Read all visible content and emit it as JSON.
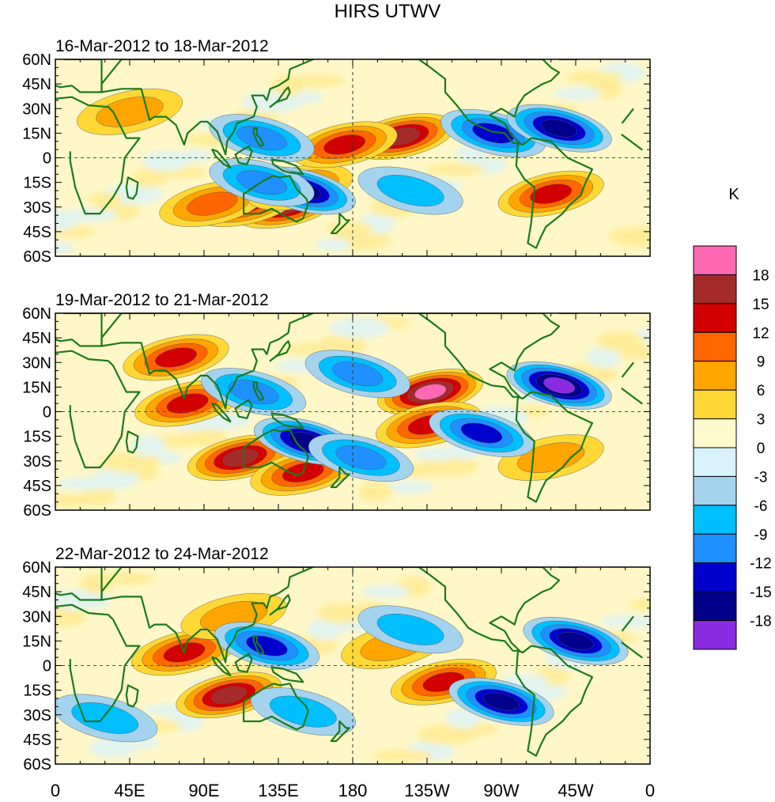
{
  "figure": {
    "title": "HIRS UTWV",
    "units": "K"
  },
  "panels": [
    {
      "label": "16-Mar-2012 to 18-Mar-2012"
    },
    {
      "label": "19-Mar-2012 to 21-Mar-2012"
    },
    {
      "label": "22-Mar-2012 to 24-Mar-2012"
    }
  ],
  "latitude_ticks": [
    "60N",
    "45N",
    "30N",
    "15N",
    "0",
    "15S",
    "30S",
    "45S",
    "60S"
  ],
  "longitude_ticks": [
    "0",
    "45E",
    "90E",
    "135E",
    "180",
    "135W",
    "90W",
    "45W",
    "0"
  ],
  "colorbar": {
    "colors": [
      "#8a2be2",
      "#00008b",
      "#0000cd",
      "#1e90ff",
      "#00bfff",
      "#a4d3ee",
      "#d8f3fb",
      "#fffacd",
      "#ffd835",
      "#ffa500",
      "#ff6600",
      "#d20000",
      "#a52a2a",
      "#ff69b4"
    ],
    "labels": [
      "-18",
      "-15",
      "-12",
      "-9",
      "-6",
      "-3",
      "0",
      "3",
      "6",
      "9",
      "12",
      "15",
      "18"
    ]
  },
  "chart_data": {
    "type": "heatmap",
    "title": "HIRS UTWV",
    "colorbar_label": "K",
    "levels": [
      -18,
      -15,
      -12,
      -9,
      -6,
      -3,
      0,
      3,
      6,
      9,
      12,
      15,
      18
    ],
    "x_range": [
      0,
      360
    ],
    "y_range": [
      -60,
      60
    ],
    "features": [
      [
        {
          "lon": 140,
          "lat": -29,
          "value": 16
        },
        {
          "lon": 115,
          "lat": -28,
          "value": 12
        },
        {
          "lon": 95,
          "lat": -28,
          "value": 9
        },
        {
          "lon": 148,
          "lat": -18,
          "value": 10
        },
        {
          "lon": 210,
          "lat": 13,
          "value": 15
        },
        {
          "lon": 175,
          "lat": 8,
          "value": 12
        },
        {
          "lon": 45,
          "lat": 28,
          "value": 7
        },
        {
          "lon": 300,
          "lat": -22,
          "value": 12
        },
        {
          "lon": 150,
          "lat": -20,
          "value": -15
        },
        {
          "lon": 125,
          "lat": -15,
          "value": -10
        },
        {
          "lon": 125,
          "lat": 12,
          "value": -10
        },
        {
          "lon": 265,
          "lat": 15,
          "value": -12
        },
        {
          "lon": 305,
          "lat": 18,
          "value": -15
        },
        {
          "lon": 215,
          "lat": -20,
          "value": -6
        }
      ],
      [
        {
          "lon": 112,
          "lat": -28,
          "value": 16
        },
        {
          "lon": 150,
          "lat": -37,
          "value": 14
        },
        {
          "lon": 80,
          "lat": 5,
          "value": 12
        },
        {
          "lon": 73,
          "lat": 33,
          "value": 12
        },
        {
          "lon": 227,
          "lat": 12,
          "value": 18
        },
        {
          "lon": 226,
          "lat": -8,
          "value": 12
        },
        {
          "lon": 300,
          "lat": -28,
          "value": 8
        },
        {
          "lon": 152,
          "lat": -18,
          "value": -15
        },
        {
          "lon": 120,
          "lat": 12,
          "value": -10
        },
        {
          "lon": 183,
          "lat": 23,
          "value": -9
        },
        {
          "lon": 258,
          "lat": -13,
          "value": -12
        },
        {
          "lon": 305,
          "lat": 16,
          "value": -18
        },
        {
          "lon": 185,
          "lat": -28,
          "value": -9
        }
      ],
      [
        {
          "lon": 105,
          "lat": -18,
          "value": 16
        },
        {
          "lon": 78,
          "lat": 8,
          "value": 12
        },
        {
          "lon": 108,
          "lat": 30,
          "value": 8
        },
        {
          "lon": 235,
          "lat": -10,
          "value": 12
        },
        {
          "lon": 205,
          "lat": 12,
          "value": 7
        },
        {
          "lon": 128,
          "lat": 12,
          "value": -12
        },
        {
          "lon": 150,
          "lat": -28,
          "value": -6
        },
        {
          "lon": 270,
          "lat": -22,
          "value": -15
        },
        {
          "lon": 315,
          "lat": 15,
          "value": -15
        },
        {
          "lon": 215,
          "lat": 22,
          "value": -8
        },
        {
          "lon": 30,
          "lat": -32,
          "value": -6
        }
      ]
    ]
  }
}
